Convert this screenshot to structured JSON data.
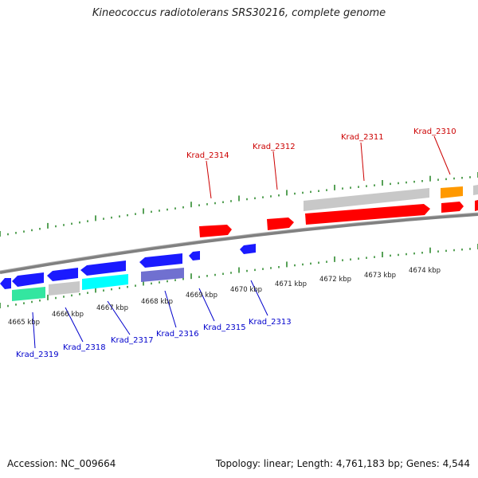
{
  "title": "Kineococcus radiotolerans SRS30216, complete genome",
  "footer": {
    "accession": "Accession: NC_009664",
    "summary": "Topology: linear; Length: 4,761,183 bp; Genes: 4,544"
  },
  "colors": {
    "top_strand_label": "#cc0000",
    "bottom_strand_label": "#0000cc",
    "tick": "#2e8b2e",
    "backbone": "#808080",
    "red_gene": "#ff0000",
    "blue_gene": "#1a1aff",
    "grey_gene": "#c8c8c8",
    "cyan_gene": "#00ffff",
    "orange_gene": "#ff9900",
    "green_gene": "#33e6a0",
    "slate_gene": "#7070d0"
  },
  "axis": {
    "unit": "kbp",
    "tick_labels": [
      "4665 kbp",
      "4666 kbp",
      "4667 kbp",
      "4668 kbp",
      "4669 kbp",
      "4670 kbp",
      "4671 kbp",
      "4672 kbp",
      "4673 kbp",
      "4674 kbp"
    ]
  },
  "gene_labels_top": [
    "Krad_2314",
    "Krad_2312",
    "Krad_2311",
    "Krad_2310"
  ],
  "gene_labels_bottom": [
    "Krad_2319",
    "Krad_2318",
    "Krad_2317",
    "Krad_2316",
    "Krad_2315",
    "Krad_2313"
  ]
}
